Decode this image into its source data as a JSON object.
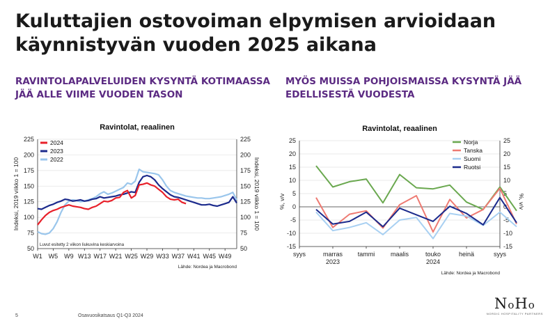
{
  "title": "Kuluttajien ostovoiman elpymisen arvioidaan käynnistyvän vuoden 2025 aikana",
  "left_heading": "RAVINTOLAPALVELUIDEN KYSYNTÄ KOTIMAASSA JÄÄ ALLE VIIME VUODEN TASON",
  "right_heading": "MYÖS MUISSA POHJOISMAISSA KYSYNTÄ JÄÄ EDELLISESTÄ VUODESTA",
  "footer": {
    "page": "5",
    "text": "Osavuosikatsaus Q1-Q3 2024"
  },
  "logo": {
    "name": "NoHo",
    "tagline": "NORDIC HOSPITALITY PARTNERS"
  },
  "colors": {
    "heading": "#5b2a82",
    "red": "#e8202a",
    "navy": "#1b2a8c",
    "lightblue": "#9ac6ec",
    "green": "#6aa84f",
    "pink": "#ee7a72",
    "blue": "#a8d0f2"
  },
  "chart_data": [
    {
      "type": "line",
      "title": "Ravintolat, reaalinen",
      "ylabel": "Indeksi, 2019 viikko 1 = 100",
      "ylabel_right": "Indeksi, 2019 viikko 1 = 100",
      "ylim": [
        50,
        225
      ],
      "yticks": [
        50,
        75,
        100,
        125,
        150,
        175,
        200,
        225
      ],
      "xlim": [
        1,
        52
      ],
      "xticks": [
        "W1",
        "W5",
        "W9",
        "W13",
        "W17",
        "W21",
        "W25",
        "W29",
        "W33",
        "W37",
        "W41",
        "W45",
        "W49"
      ],
      "xtick_values": [
        1,
        5,
        9,
        13,
        17,
        21,
        25,
        29,
        33,
        37,
        41,
        45,
        49
      ],
      "note": "Luvut esitetty 2 viikon liukuvina keskiarvoina",
      "source": "Lähde: Nordea ja Macrobond",
      "legend": "top-left",
      "series": [
        {
          "name": "2024",
          "color": "#e8202a",
          "x": [
            1,
            2,
            3,
            4,
            5,
            6,
            7,
            8,
            9,
            10,
            11,
            12,
            13,
            14,
            15,
            16,
            17,
            18,
            19,
            20,
            21,
            22,
            23,
            24,
            25,
            26,
            27,
            28,
            29,
            30,
            31,
            32,
            33,
            34,
            35,
            36,
            37,
            38,
            39
          ],
          "y": [
            88,
            96,
            103,
            108,
            111,
            113,
            116,
            118,
            120,
            118,
            117,
            116,
            114,
            113,
            116,
            118,
            122,
            126,
            125,
            127,
            131,
            132,
            140,
            143,
            131,
            135,
            152,
            153,
            155,
            152,
            150,
            145,
            140,
            133,
            129,
            128,
            129,
            124,
            122
          ]
        },
        {
          "name": "2023",
          "color": "#1b2a8c",
          "x": [
            1,
            2,
            3,
            4,
            5,
            6,
            7,
            8,
            9,
            10,
            11,
            12,
            13,
            14,
            15,
            16,
            17,
            18,
            19,
            20,
            21,
            22,
            23,
            24,
            25,
            26,
            27,
            28,
            29,
            30,
            31,
            32,
            33,
            34,
            35,
            36,
            37,
            38,
            39,
            40,
            41,
            42,
            43,
            44,
            45,
            46,
            47,
            48,
            49,
            50,
            51,
            52
          ],
          "y": [
            114,
            113,
            116,
            119,
            121,
            124,
            126,
            129,
            128,
            126,
            127,
            128,
            126,
            127,
            129,
            130,
            133,
            131,
            132,
            133,
            134,
            136,
            137,
            139,
            141,
            140,
            156,
            165,
            167,
            165,
            160,
            152,
            146,
            141,
            136,
            133,
            132,
            130,
            128,
            126,
            124,
            122,
            120,
            120,
            121,
            119,
            118,
            120,
            122,
            124,
            133,
            123
          ]
        },
        {
          "name": "2022",
          "color": "#9ac6ec",
          "x": [
            1,
            2,
            3,
            4,
            5,
            6,
            7,
            8,
            9,
            10,
            11,
            12,
            13,
            14,
            15,
            16,
            17,
            18,
            19,
            20,
            21,
            22,
            23,
            24,
            25,
            26,
            27,
            28,
            29,
            30,
            31,
            32,
            33,
            34,
            35,
            36,
            37,
            38,
            39,
            40,
            41,
            42,
            43,
            44,
            45,
            46,
            47,
            48,
            49,
            50,
            51,
            52
          ],
          "y": [
            77,
            74,
            73,
            75,
            82,
            93,
            108,
            120,
            126,
            128,
            127,
            125,
            126,
            128,
            130,
            133,
            138,
            141,
            137,
            139,
            142,
            145,
            148,
            155,
            153,
            158,
            177,
            173,
            172,
            171,
            170,
            168,
            160,
            150,
            143,
            140,
            138,
            136,
            134,
            133,
            132,
            131,
            131,
            130,
            130,
            131,
            132,
            133,
            135,
            137,
            140,
            128
          ]
        }
      ]
    },
    {
      "type": "line",
      "title": "Ravintolat, reaalinen",
      "ylabel": "%, v/v",
      "ylabel_right": "%, v/v",
      "ylim": [
        -15,
        25
      ],
      "yticks": [
        -15,
        -10,
        -5,
        0,
        5,
        10,
        15,
        20,
        25
      ],
      "xlim": [
        0,
        12
      ],
      "xticks": [
        {
          "x": 0,
          "label": "syys",
          "year": ""
        },
        {
          "x": 2,
          "label": "marras",
          "year": "2023"
        },
        {
          "x": 4,
          "label": "tammi",
          "year": ""
        },
        {
          "x": 6,
          "label": "maalis",
          "year": ""
        },
        {
          "x": 8,
          "label": "touko",
          "year": "2024"
        },
        {
          "x": 10,
          "label": "heinä",
          "year": ""
        },
        {
          "x": 12,
          "label": "syys",
          "year": ""
        }
      ],
      "source": "Lähde: Nordea ja Macrobond",
      "legend": "top-right",
      "series": [
        {
          "name": "Norja",
          "color": "#6aa84f",
          "x": [
            1,
            2,
            3,
            4,
            5,
            6,
            7,
            8,
            9,
            10,
            11,
            12,
            13
          ],
          "y": [
            15.5,
            7.5,
            9.5,
            10.5,
            1.5,
            12.2,
            7.2,
            6.8,
            8.2,
            1.8,
            -1.0,
            7.5,
            -1.5
          ]
        },
        {
          "name": "Tanska",
          "color": "#ee7a72",
          "x": [
            1,
            2,
            3,
            4,
            5,
            6,
            7,
            8,
            9,
            10,
            11,
            12,
            13
          ],
          "y": [
            3.5,
            -7.8,
            -2.8,
            -1.5,
            -8.0,
            0.8,
            4.2,
            -9.5,
            2.8,
            -4.2,
            -1.0,
            7.0,
            -6.5
          ]
        },
        {
          "name": "Suomi",
          "color": "#a8d0f2",
          "x": [
            1,
            2,
            3,
            4,
            5,
            6,
            7,
            8,
            9,
            10,
            11,
            12,
            13
          ],
          "y": [
            -2.0,
            -9.0,
            -7.8,
            -6.0,
            -10.5,
            -5.0,
            -4.0,
            -12.0,
            -2.5,
            -3.5,
            -7.0,
            -2.0,
            -7.5
          ]
        },
        {
          "name": "Ruotsi",
          "color": "#1b2a8c",
          "x": [
            1,
            2,
            3,
            4,
            5,
            6,
            7,
            8,
            9,
            10,
            11,
            12,
            13
          ],
          "y": [
            -1.0,
            -6.5,
            -5.5,
            -2.0,
            -7.5,
            -0.5,
            -3.0,
            -5.5,
            0.2,
            -2.5,
            -6.8,
            3.5,
            -6.0
          ]
        }
      ]
    }
  ]
}
